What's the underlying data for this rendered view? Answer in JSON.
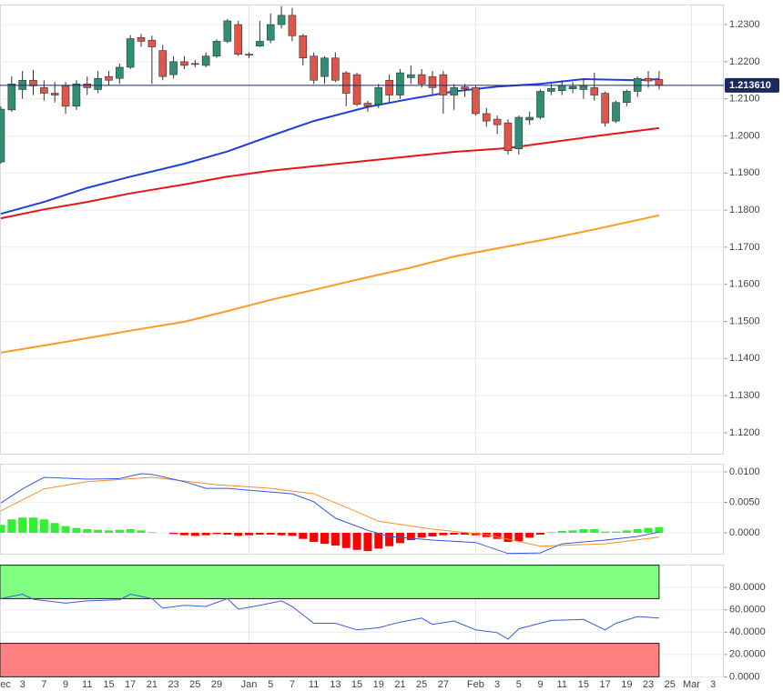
{
  "chart_data": [
    {
      "type": "candlestick",
      "xlim": [
        -0.08,
        67
      ],
      "ylim": [
        1.1141,
        1.2354
      ],
      "grid": true,
      "yticks": [
        {
          "value": 1.12,
          "label": "1.1200"
        },
        {
          "value": 1.13,
          "label": "1.1300"
        },
        {
          "value": 1.14,
          "label": "1.1400"
        },
        {
          "value": 1.15,
          "label": "1.1500"
        },
        {
          "value": 1.16,
          "label": "1.1600"
        },
        {
          "value": 1.17,
          "label": "1.1700"
        },
        {
          "value": 1.18,
          "label": "1.1800"
        },
        {
          "value": 1.19,
          "label": "1.1900"
        },
        {
          "value": 1.2,
          "label": "1.2000"
        },
        {
          "value": 1.21,
          "label": "1.2100"
        },
        {
          "value": 1.22,
          "label": "1.2200"
        },
        {
          "value": 1.23,
          "label": "1.2300"
        }
      ],
      "up_color": "#2f8f74",
      "down_color": "#e0544a",
      "x": [
        0,
        1,
        2,
        3,
        4,
        5,
        6,
        7,
        8,
        9,
        10,
        11,
        12,
        13,
        14,
        15,
        16,
        17,
        18,
        19,
        20,
        21,
        22,
        23,
        24,
        25,
        26,
        27,
        28,
        29,
        30,
        31,
        32,
        33,
        34,
        35,
        36,
        37,
        38,
        39,
        40,
        41,
        42,
        43,
        44,
        45,
        46,
        47,
        48,
        49,
        50,
        51,
        52,
        53,
        54,
        55,
        56,
        57,
        58,
        59,
        60,
        61
      ],
      "open": [
        1.193,
        1.207,
        1.2125,
        1.215,
        1.213,
        1.2115,
        1.2135,
        1.208,
        1.214,
        1.2125,
        1.216,
        1.2155,
        1.2185,
        1.2265,
        1.2258,
        1.223,
        1.2165,
        1.22,
        1.2195,
        1.219,
        1.2215,
        1.2255,
        1.23,
        1.222,
        1.2242,
        1.2258,
        1.23,
        1.2325,
        1.227,
        1.2215,
        1.216,
        1.221,
        1.217,
        1.2165,
        1.2088,
        1.2085,
        1.215,
        1.211,
        1.2157,
        1.2165,
        1.216,
        1.2165,
        1.211,
        1.2132,
        1.213,
        1.206,
        1.2045,
        1.2035,
        1.1965,
        1.2043,
        1.205,
        1.212,
        1.2122,
        1.2127,
        1.2125,
        1.213,
        1.2115,
        1.204,
        1.209,
        1.212,
        1.2155,
        1.2152
      ],
      "high": [
        1.208,
        1.216,
        1.2175,
        1.2178,
        1.215,
        1.2145,
        1.2145,
        1.215,
        1.216,
        1.2175,
        1.2175,
        1.2195,
        1.2272,
        1.2275,
        1.227,
        1.2245,
        1.2215,
        1.2215,
        1.2205,
        1.2225,
        1.226,
        1.2315,
        1.231,
        1.2225,
        1.231,
        1.233,
        1.235,
        1.2345,
        1.2275,
        1.2225,
        1.2215,
        1.2225,
        1.2175,
        1.217,
        1.2095,
        1.214,
        1.2165,
        1.218,
        1.219,
        1.218,
        1.2175,
        1.2175,
        1.214,
        1.214,
        1.2135,
        1.2075,
        1.2055,
        1.2045,
        1.2055,
        1.2065,
        1.2125,
        1.214,
        1.215,
        1.2145,
        1.2155,
        1.217,
        1.212,
        1.2095,
        1.2125,
        1.216,
        1.2175,
        1.2175
      ],
      "low": [
        1.1925,
        1.2065,
        1.21,
        1.211,
        1.2095,
        1.209,
        1.206,
        1.207,
        1.211,
        1.2115,
        1.2135,
        1.214,
        1.218,
        1.224,
        1.214,
        1.215,
        1.2155,
        1.218,
        1.2185,
        1.2185,
        1.221,
        1.225,
        1.2215,
        1.221,
        1.224,
        1.225,
        1.229,
        1.2255,
        1.219,
        1.214,
        1.214,
        1.2145,
        1.208,
        1.208,
        1.2065,
        1.2075,
        1.209,
        1.21,
        1.214,
        1.213,
        1.211,
        1.206,
        1.207,
        1.2105,
        1.2055,
        1.2025,
        1.2005,
        1.195,
        1.195,
        1.203,
        1.2045,
        1.211,
        1.211,
        1.2115,
        1.21,
        1.2095,
        1.2025,
        1.2035,
        1.208,
        1.2105,
        1.213,
        1.2125
      ],
      "close": [
        1.2072,
        1.214,
        1.215,
        1.2135,
        1.2115,
        1.211,
        1.208,
        1.214,
        1.213,
        1.2155,
        1.215,
        1.2185,
        1.2262,
        1.2255,
        1.224,
        1.216,
        1.22,
        1.219,
        1.2193,
        1.2215,
        1.2255,
        1.231,
        1.222,
        1.2218,
        1.2255,
        1.23,
        1.2325,
        1.227,
        1.221,
        1.215,
        1.221,
        1.215,
        1.2115,
        1.2085,
        1.208,
        1.213,
        1.211,
        1.217,
        1.2165,
        1.214,
        1.213,
        1.211,
        1.213,
        1.2127,
        1.206,
        1.204,
        1.203,
        1.196,
        1.205,
        1.205,
        1.212,
        1.2128,
        1.2136,
        1.2133,
        1.2135,
        1.211,
        1.2035,
        1.209,
        1.212,
        1.2155,
        1.2148,
        1.2136
      ],
      "lines": [
        {
          "color": "#ff9a1f",
          "x": [
            0,
            4,
            8,
            12,
            17,
            21,
            25,
            29,
            34,
            38,
            42,
            46,
            51,
            55,
            61
          ],
          "values": [
            1.1416,
            1.1435,
            1.1455,
            1.1475,
            1.1499,
            1.1528,
            1.1558,
            1.1585,
            1.1619,
            1.1645,
            1.1675,
            1.1697,
            1.1724,
            1.1748,
            1.1786
          ]
        },
        {
          "color": "#e8141a",
          "x": [
            0,
            4,
            8,
            12,
            17,
            21,
            25,
            29,
            34,
            38,
            42,
            47,
            51,
            55,
            61
          ],
          "values": [
            1.1778,
            1.1802,
            1.1822,
            1.1845,
            1.1869,
            1.189,
            1.1906,
            1.1918,
            1.1933,
            1.1945,
            1.1957,
            1.1967,
            1.1983,
            1.1999,
            1.2021
          ]
        },
        {
          "color": "#1e3fe0",
          "x": [
            0,
            4,
            8,
            12,
            17,
            21,
            25,
            29,
            34,
            38,
            42,
            46,
            50,
            54,
            59,
            61
          ],
          "values": [
            1.179,
            1.1822,
            1.186,
            1.189,
            1.1925,
            1.1958,
            1.2,
            1.204,
            1.2078,
            1.21,
            1.212,
            1.2133,
            1.214,
            1.2153,
            1.215,
            1.2153
          ]
        }
      ],
      "last_price": {
        "value": 1.21361,
        "label": "1.213610",
        "color": "#1b2a5e"
      }
    },
    {
      "type": "macd",
      "xlim": [
        -0.08,
        67
      ],
      "ylim": [
        -0.00358,
        0.01134
      ],
      "grid": true,
      "yticks": [
        {
          "value": 0,
          "label": "0.0000"
        },
        {
          "value": 0.005,
          "label": "0.0050"
        },
        {
          "value": 0.01,
          "label": "0.0100"
        }
      ],
      "positive_color": "#33ee33",
      "negative_color": "#ff0000",
      "x": [
        0,
        1,
        2,
        3,
        4,
        5,
        6,
        7,
        8,
        9,
        10,
        11,
        12,
        13,
        14,
        15,
        16,
        17,
        18,
        19,
        20,
        21,
        22,
        23,
        24,
        25,
        26,
        27,
        28,
        29,
        30,
        31,
        32,
        33,
        34,
        35,
        36,
        37,
        38,
        39,
        40,
        41,
        42,
        43,
        44,
        45,
        46,
        47,
        48,
        49,
        50,
        51,
        52,
        53,
        54,
        55,
        56,
        57,
        58,
        59,
        60,
        61
      ],
      "histogram": [
        0.0013,
        0.0022,
        0.0025,
        0.0025,
        0.0022,
        0.0016,
        0.0011,
        0.0008,
        0.0006,
        0.0005,
        0.0004,
        0.0005,
        0.0006,
        0.0004,
        0.0001,
        0,
        -0.0002,
        -0.0004,
        -0.0005,
        -0.0004,
        -0.0002,
        -0.0003,
        -0.0005,
        -0.0004,
        -0.0003,
        -0.0003,
        -0.0004,
        -0.0005,
        -0.001,
        -0.0015,
        -0.0018,
        -0.0021,
        -0.0025,
        -0.0028,
        -0.003,
        -0.0026,
        -0.0022,
        -0.0017,
        -0.0012,
        -0.0008,
        -0.0006,
        -0.0004,
        -0.0003,
        -0.0003,
        -0.0004,
        -0.0007,
        -0.001,
        -0.0015,
        -0.0014,
        -0.0008,
        -0.0003,
        0.0001,
        0.0003,
        0.0004,
        0.0006,
        0.0006,
        0.0002,
        0.0002,
        0.0004,
        0.0006,
        0.0008,
        0.0009
      ],
      "lines": [
        {
          "color": "#ff8c2a",
          "x": [
            0,
            4,
            8,
            14,
            20,
            25,
            29,
            32,
            35,
            40,
            45,
            50,
            56,
            61
          ],
          "values": [
            0.0036,
            0.0072,
            0.0084,
            0.0091,
            0.0079,
            0.0073,
            0.0064,
            0.0042,
            0.0019,
            0.0006,
            -0.0003,
            -0.0022,
            -0.0018,
            -0.0007
          ]
        },
        {
          "color": "#3558e6",
          "x": [
            0,
            2,
            4,
            8,
            11,
            13,
            14,
            17,
            19,
            21,
            25,
            27,
            29,
            31,
            34,
            36,
            40,
            44,
            47,
            50,
            52,
            56,
            59,
            61
          ],
          "values": [
            0.0049,
            0.0072,
            0.0091,
            0.0088,
            0.0089,
            0.0097,
            0.0096,
            0.0084,
            0.0073,
            0.0073,
            0.0067,
            0.0064,
            0.0051,
            0.0024,
            0.0004,
            -0.0006,
            -0.0012,
            -0.0016,
            -0.0034,
            -0.0033,
            -0.0018,
            -0.0012,
            -0.0006,
            0.0001
          ]
        }
      ]
    },
    {
      "type": "rsi",
      "xlim": [
        -0.08,
        67
      ],
      "ylim": [
        -0.5,
        100.5
      ],
      "grid": true,
      "yticks": [
        {
          "value": 0,
          "label": "0.0000"
        },
        {
          "value": 20,
          "label": "20.0000"
        },
        {
          "value": 40,
          "label": "40.0000"
        },
        {
          "value": 60,
          "label": "60.0000"
        },
        {
          "value": 80,
          "label": "80.0000"
        }
      ],
      "zones": [
        {
          "from": 70,
          "to": 100,
          "color": "#80ff80"
        },
        {
          "from": 0,
          "to": 30,
          "color": "#ff8080"
        }
      ],
      "zone_end": 61,
      "lines": [
        {
          "color": "#3b5bdb",
          "x": [
            0,
            2,
            3,
            6,
            8,
            11,
            12,
            14,
            15,
            17,
            19,
            21,
            22,
            24,
            26,
            27,
            29,
            31,
            33,
            35,
            37,
            39,
            40,
            42,
            44,
            46,
            47,
            48,
            51,
            54,
            56,
            57,
            59,
            61
          ],
          "values": [
            70,
            74,
            69.5,
            66,
            68,
            69,
            74,
            70,
            61.5,
            64,
            63,
            70,
            60.6,
            64,
            68,
            63,
            48,
            48,
            42,
            44,
            49,
            52.6,
            47,
            50,
            42,
            39.6,
            33.7,
            43,
            50.5,
            51.4,
            42,
            48,
            54,
            52.6
          ]
        }
      ],
      "xticks": [
        {
          "value": 0,
          "label": "ec"
        },
        {
          "value": 2,
          "label": "3"
        },
        {
          "value": 4,
          "label": "7"
        },
        {
          "value": 6,
          "label": "9"
        },
        {
          "value": 8,
          "label": "11"
        },
        {
          "value": 10,
          "label": "15"
        },
        {
          "value": 12,
          "label": "17"
        },
        {
          "value": 14,
          "label": "21"
        },
        {
          "value": 16,
          "label": "23"
        },
        {
          "value": 18,
          "label": "25"
        },
        {
          "value": 20,
          "label": "29"
        },
        {
          "value": 23,
          "label": "Jan"
        },
        {
          "value": 25,
          "label": "5"
        },
        {
          "value": 27,
          "label": "7"
        },
        {
          "value": 29,
          "label": "11"
        },
        {
          "value": 31,
          "label": "13"
        },
        {
          "value": 33,
          "label": "15"
        },
        {
          "value": 35,
          "label": "19"
        },
        {
          "value": 37,
          "label": "21"
        },
        {
          "value": 39,
          "label": "25"
        },
        {
          "value": 41,
          "label": "27"
        },
        {
          "value": 44,
          "label": "Feb"
        },
        {
          "value": 46,
          "label": "3"
        },
        {
          "value": 48,
          "label": "5"
        },
        {
          "value": 50,
          "label": "9"
        },
        {
          "value": 52,
          "label": "11"
        },
        {
          "value": 54,
          "label": "15"
        },
        {
          "value": 56,
          "label": "17"
        },
        {
          "value": 58,
          "label": "19"
        },
        {
          "value": 60,
          "label": "23"
        },
        {
          "value": 62,
          "label": "25"
        },
        {
          "value": 64,
          "label": "Mar"
        },
        {
          "value": 66,
          "label": "3"
        }
      ]
    }
  ]
}
